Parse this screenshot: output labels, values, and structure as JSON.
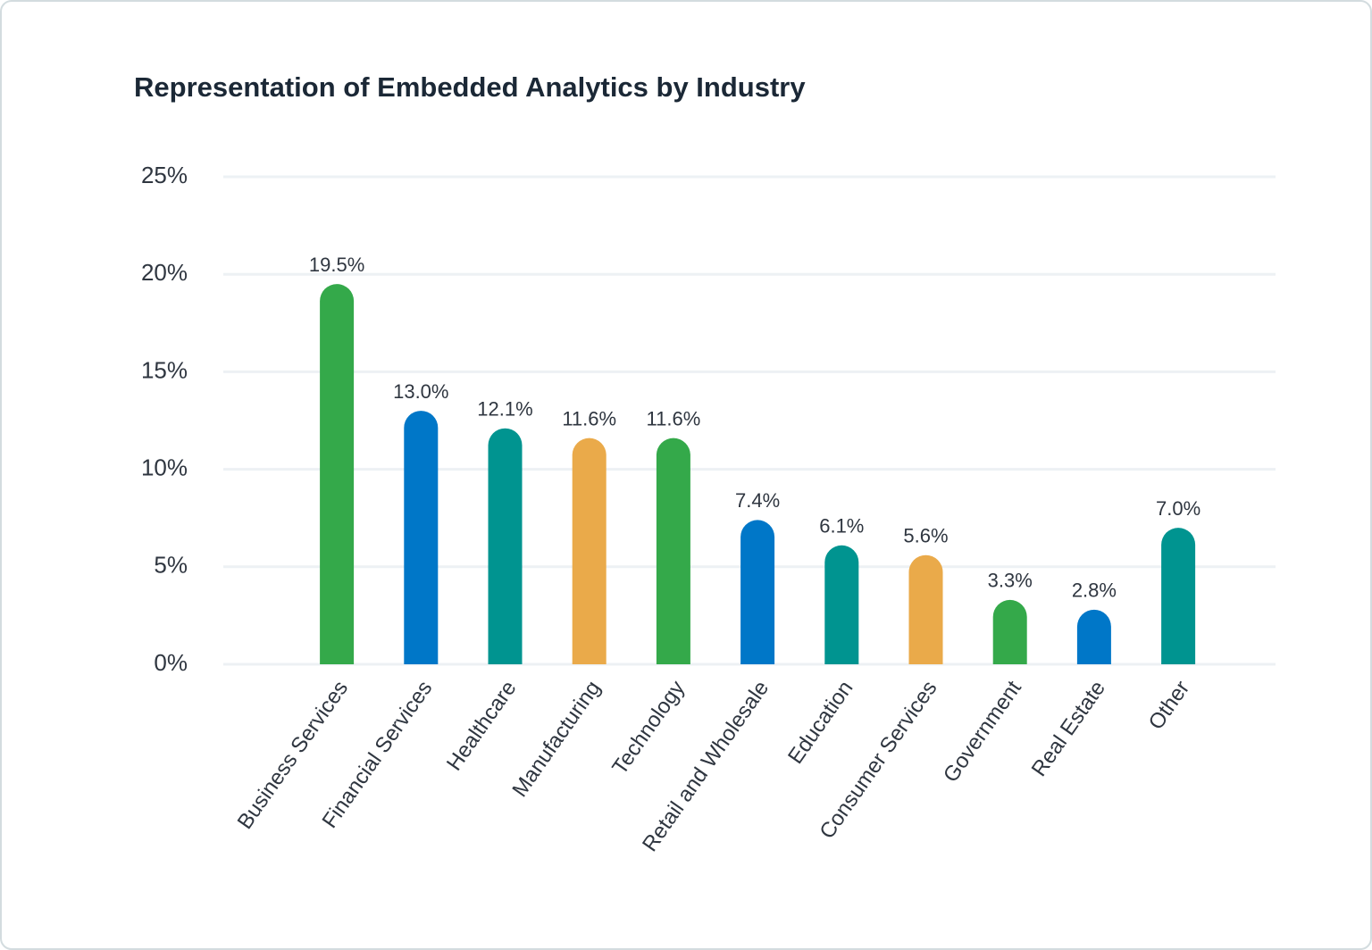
{
  "chart_data": {
    "type": "bar",
    "title": "Representation of Embedded Analytics by Industry",
    "categories": [
      "Business Services",
      "Financial Services",
      "Healthcare",
      "Manufacturing",
      "Technology",
      "Retail and Wholesale",
      "Education",
      "Consumer Services",
      "Government",
      "Real Estate",
      "Other"
    ],
    "values": [
      19.5,
      13.0,
      12.1,
      11.6,
      11.6,
      7.4,
      6.1,
      5.6,
      3.3,
      2.8,
      7.0
    ],
    "value_labels": [
      "19.5%",
      "13.0%",
      "12.1%",
      "11.6%",
      "11.6%",
      "7.4%",
      "6.1%",
      "5.6%",
      "3.3%",
      "2.8%",
      "7.0%"
    ],
    "colors": [
      "#34a94a",
      "#0077c8",
      "#009490",
      "#eaaa4a",
      "#34a94a",
      "#0077c8",
      "#009490",
      "#eaaa4a",
      "#34a94a",
      "#0077c8",
      "#009490"
    ],
    "ylim": [
      0,
      25
    ],
    "yticks": [
      {
        "value": 0,
        "label": "0%"
      },
      {
        "value": 5,
        "label": "5%"
      },
      {
        "value": 10,
        "label": "10%"
      },
      {
        "value": 15,
        "label": "15%"
      },
      {
        "value": 20,
        "label": "20%"
      },
      {
        "value": 25,
        "label": "25%"
      }
    ],
    "grid": true
  }
}
